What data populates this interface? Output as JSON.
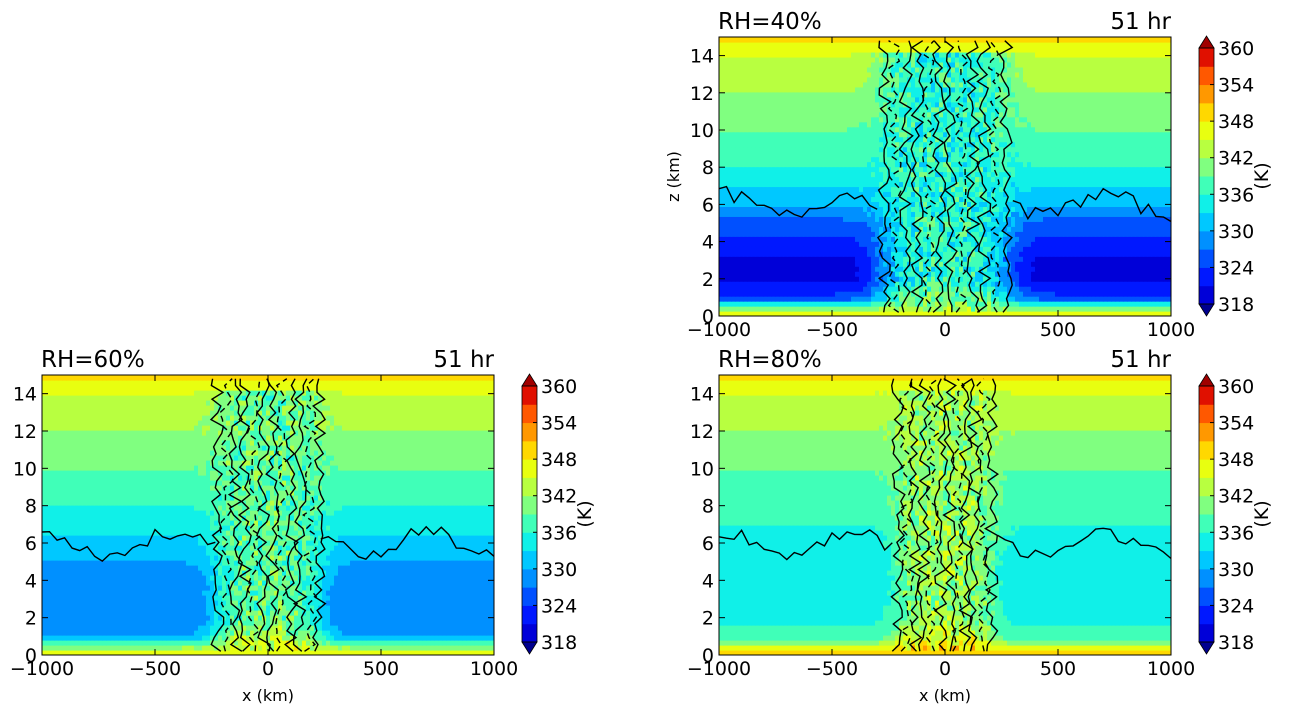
{
  "colorbar": {
    "label": "(K)",
    "ticks": [
      318,
      324,
      330,
      336,
      342,
      348,
      354,
      360
    ],
    "levels": [
      318,
      321,
      324,
      327,
      330,
      333,
      336,
      339,
      342,
      345,
      348,
      351,
      354,
      357,
      360
    ],
    "colors": [
      "#00008f",
      "#0000d8",
      "#0018ff",
      "#0050ff",
      "#0090ff",
      "#00c8ff",
      "#10f0e8",
      "#40ffb8",
      "#80ff80",
      "#b8ff40",
      "#e8ff10",
      "#ffd800",
      "#ff9800",
      "#ff5800",
      "#e01000",
      "#a00000"
    ],
    "extend": "both"
  },
  "chart_data": [
    {
      "type": "contourf",
      "title_left": "RH=40%",
      "title_right": "51 hr",
      "xlabel": "",
      "ylabel": "z (km)",
      "xlim": [
        -1000,
        1000
      ],
      "ylim": [
        0,
        15
      ],
      "xticks": [
        -1000,
        -500,
        0,
        500,
        1000
      ],
      "xtick_labels": [
        "−1000",
        "−500",
        "0",
        "500",
        "1000"
      ],
      "yticks": [
        0,
        2,
        4,
        6,
        8,
        10,
        12,
        14
      ],
      "theta_profile_K": [
        [
          0,
          350
        ],
        [
          0.5,
          338
        ],
        [
          1,
          325
        ],
        [
          2,
          320
        ],
        [
          3,
          320
        ],
        [
          4,
          323
        ],
        [
          5,
          326
        ],
        [
          6,
          330
        ],
        [
          7,
          333
        ],
        [
          8,
          336
        ],
        [
          10,
          339
        ],
        [
          12,
          342
        ],
        [
          14,
          345
        ],
        [
          15,
          349
        ]
      ],
      "core_half_width_km": 300,
      "core_theta_K": 336
    },
    {
      "type": "contourf",
      "title_left": "RH=60%",
      "title_right": "51 hr",
      "xlabel": "x (km)",
      "ylabel": "",
      "xlim": [
        -1000,
        1000
      ],
      "ylim": [
        0,
        15
      ],
      "xticks": [
        -1000,
        -500,
        0,
        500,
        1000
      ],
      "xtick_labels": [
        "−1000",
        "−500",
        "0",
        "500",
        "1000"
      ],
      "yticks": [
        0,
        2,
        4,
        6,
        8,
        10,
        12,
        14
      ],
      "theta_profile_K": [
        [
          0,
          350
        ],
        [
          0.5,
          340
        ],
        [
          1,
          330
        ],
        [
          2,
          327
        ],
        [
          3,
          327
        ],
        [
          4,
          328
        ],
        [
          5,
          330
        ],
        [
          6,
          332
        ],
        [
          7,
          334
        ],
        [
          8,
          336
        ],
        [
          10,
          339
        ],
        [
          12,
          342
        ],
        [
          14,
          345
        ],
        [
          15,
          349
        ]
      ],
      "core_half_width_km": 250,
      "core_theta_K": 339
    },
    {
      "type": "contourf",
      "title_left": "RH=80%",
      "title_right": "51 hr",
      "xlabel": "x (km)",
      "ylabel": "",
      "xlim": [
        -1000,
        1000
      ],
      "ylim": [
        0,
        15
      ],
      "xticks": [
        -1000,
        -500,
        0,
        500,
        1000
      ],
      "xtick_labels": [
        "−1000",
        "−500",
        "0",
        "500",
        "1000"
      ],
      "yticks": [
        0,
        2,
        4,
        6,
        8,
        10,
        12,
        14
      ],
      "theta_profile_K": [
        [
          0,
          352
        ],
        [
          0.5,
          344
        ],
        [
          1,
          337
        ],
        [
          2,
          335
        ],
        [
          3,
          334
        ],
        [
          4,
          333
        ],
        [
          5,
          334
        ],
        [
          6,
          335
        ],
        [
          8,
          337
        ],
        [
          10,
          339
        ],
        [
          12,
          342
        ],
        [
          14,
          345
        ],
        [
          15,
          349
        ]
      ],
      "core_half_width_km": 230,
      "core_theta_K": 342
    }
  ]
}
